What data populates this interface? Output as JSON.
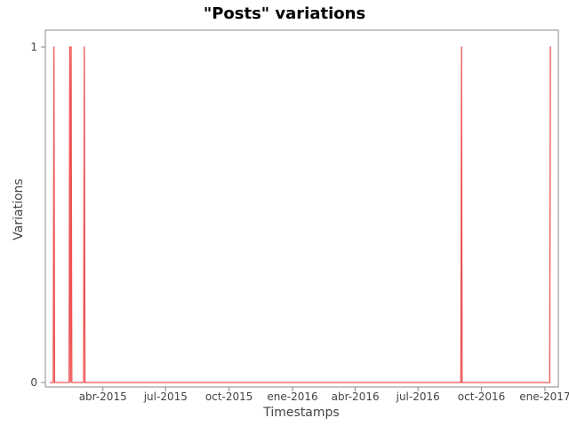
{
  "chart_data": {
    "type": "line",
    "title": "\"Posts\" variations",
    "xlabel": "Timestamps",
    "ylabel": "Variations",
    "grid": false,
    "legend": "none",
    "x_range": [
      "2015-01-14",
      "2017-01-14"
    ],
    "y_range": [
      0,
      1
    ],
    "yticks": [
      {
        "value": 0,
        "label": "0"
      },
      {
        "value": 1,
        "label": "1"
      }
    ],
    "xticks": [
      {
        "date": "2015-04-01",
        "label": "abr-2015"
      },
      {
        "date": "2015-07-01",
        "label": "jul-2015"
      },
      {
        "date": "2015-10-01",
        "label": "oct-2015"
      },
      {
        "date": "2016-01-01",
        "label": "ene-2016"
      },
      {
        "date": "2016-04-01",
        "label": "abr-2016"
      },
      {
        "date": "2016-07-01",
        "label": "jul-2016"
      },
      {
        "date": "2016-10-01",
        "label": "oct-2016"
      },
      {
        "date": "2017-01-01",
        "label": "ene-2017"
      }
    ],
    "series": [
      {
        "color": "#ee5555",
        "points": [
          {
            "x": "2015-01-14",
            "y": 0
          },
          {
            "x": "2015-01-19",
            "y": 0
          },
          {
            "x": "2015-01-20",
            "y": 1
          },
          {
            "x": "2015-01-21",
            "y": 0
          },
          {
            "x": "2015-02-11",
            "y": 0
          },
          {
            "x": "2015-02-12",
            "y": 1
          },
          {
            "x": "2015-02-13",
            "y": 0
          },
          {
            "x": "2015-02-14",
            "y": 1
          },
          {
            "x": "2015-02-15",
            "y": 0
          },
          {
            "x": "2015-03-04",
            "y": 0
          },
          {
            "x": "2015-03-05",
            "y": 1
          },
          {
            "x": "2015-03-06",
            "y": 0
          },
          {
            "x": "2016-09-01",
            "y": 0
          },
          {
            "x": "2016-09-02",
            "y": 1
          },
          {
            "x": "2016-09-03",
            "y": 0
          },
          {
            "x": "2017-01-08",
            "y": 0
          },
          {
            "x": "2017-01-09",
            "y": 1
          }
        ]
      }
    ]
  }
}
